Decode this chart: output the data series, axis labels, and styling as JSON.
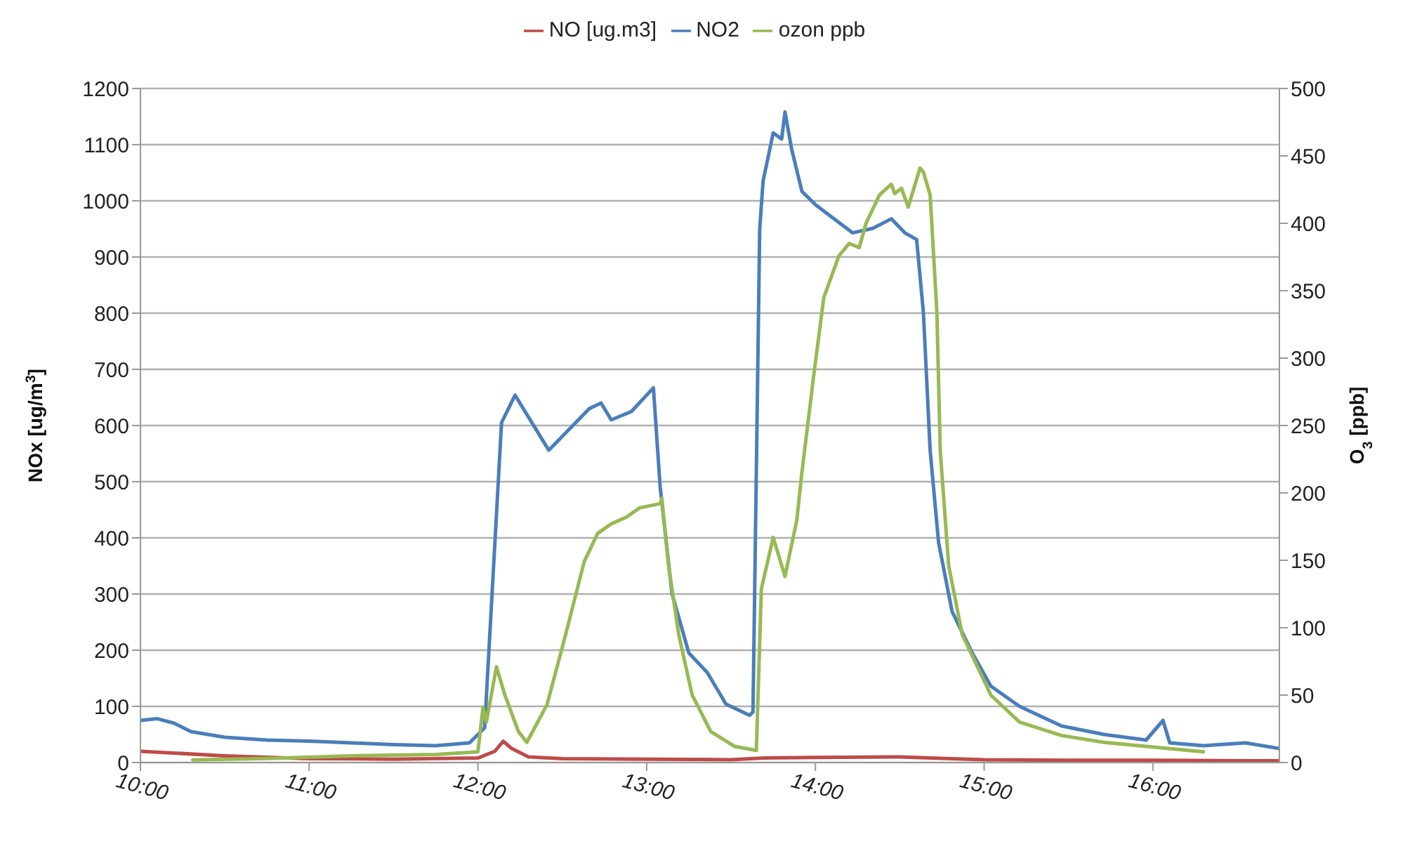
{
  "chart_data": {
    "type": "line",
    "xlabel": null,
    "ylabel": "NOx [ug/m$^{3}$]",
    "y2label": "O$_{3}$ [ppb]",
    "legend": "top",
    "grid": "y",
    "marker": "none",
    "line_style": "solid",
    "xlim": [
      10,
      16.75
    ],
    "xticks": [
      {
        "value": 10,
        "label": "10:00"
      },
      {
        "value": 11,
        "label": "11:00"
      },
      {
        "value": 12,
        "label": "12:00"
      },
      {
        "value": 13,
        "label": "13:00"
      },
      {
        "value": 14,
        "label": "14:00"
      },
      {
        "value": 15,
        "label": "15:00"
      },
      {
        "value": 16,
        "label": "16:00"
      }
    ],
    "ylim": [
      0,
      1200
    ],
    "yticks": [
      0,
      100,
      200,
      300,
      400,
      500,
      600,
      700,
      800,
      900,
      1000,
      1100,
      1200
    ],
    "y2lim": [
      0,
      500
    ],
    "y2ticks": [
      0,
      50,
      100,
      150,
      200,
      250,
      300,
      350,
      400,
      450,
      500
    ],
    "series": [
      {
        "name": "NO2",
        "color": "#4a7ebb",
        "x": [
          10,
          10.1,
          10.2,
          10.3,
          10.5,
          10.75,
          11,
          11.25,
          11.5,
          11.75,
          11.95,
          12,
          12.04,
          12.14,
          12.22,
          12.42,
          12.66,
          12.73,
          12.79,
          12.91,
          13.04,
          13.08,
          13.15,
          13.25,
          13.36,
          13.47,
          13.61,
          13.63,
          13.64,
          13.67,
          13.69,
          13.75,
          13.8,
          13.82,
          13.86,
          13.92,
          14,
          14.11,
          14.22,
          14.34,
          14.45,
          14.53,
          14.6,
          14.64,
          14.68,
          14.73,
          14.81,
          14.93,
          15.04,
          15.21,
          15.46,
          15.71,
          15.96,
          16.06,
          16.1,
          16.3,
          16.55,
          16.75
        ],
        "values": [
          75,
          78,
          70,
          55,
          45,
          40,
          38,
          35,
          32,
          30,
          35,
          50,
          62,
          605,
          654,
          556,
          630,
          640,
          610,
          625,
          667,
          491,
          301,
          195,
          160,
          104,
          84,
          90,
          300,
          950,
          1035,
          1121,
          1110,
          1158,
          1091,
          1017,
          993,
          968,
          943,
          951,
          968,
          943,
          931,
          802,
          556,
          392,
          269,
          195,
          136,
          100,
          65,
          50,
          40,
          75,
          35,
          30,
          35,
          25
        ]
      },
      {
        "name": "NO [ug.m3]",
        "color": "#be4b48",
        "x": [
          10,
          10.5,
          11,
          11.5,
          12,
          12.1,
          12.15,
          12.2,
          12.3,
          12.5,
          13,
          13.5,
          13.7,
          14,
          14.5,
          14.8,
          15,
          15.5,
          16,
          16.75
        ],
        "values": [
          20,
          12,
          7,
          6,
          8,
          20,
          38,
          25,
          10,
          7,
          6,
          5,
          8,
          9,
          10,
          7,
          5,
          4,
          4,
          3
        ]
      },
      {
        "name": "ozon ppb",
        "color": "#98b954",
        "axis": "y2",
        "x": [
          10.31,
          10.75,
          11.25,
          11.75,
          12,
          12.03,
          12.05,
          12.11,
          12.16,
          12.24,
          12.29,
          12.41,
          12.52,
          12.63,
          12.71,
          12.79,
          12.88,
          12.96,
          13.08,
          13.09,
          13.13,
          13.19,
          13.27,
          13.38,
          13.52,
          13.65,
          13.68,
          13.75,
          13.82,
          13.89,
          13.92,
          13.99,
          14.05,
          14.14,
          14.2,
          14.26,
          14.3,
          14.38,
          14.45,
          14.47,
          14.51,
          14.55,
          14.62,
          14.64,
          14.68,
          14.72,
          14.74,
          14.79,
          14.87,
          15.04,
          15.21,
          15.46,
          15.71,
          15.96,
          16.3
        ],
        "values": [
          2,
          3,
          5,
          6,
          8,
          41,
          30,
          71,
          50,
          23,
          15,
          43,
          95,
          149,
          170,
          177,
          182,
          189,
          192,
          196,
          146,
          95,
          50,
          23,
          12,
          9,
          129,
          167,
          138,
          180,
          215,
          287,
          345,
          376,
          385,
          382,
          400,
          421,
          429,
          422,
          426,
          412,
          441,
          438,
          421,
          334,
          231,
          146,
          95,
          50,
          30,
          20,
          15,
          12,
          8
        ]
      }
    ]
  }
}
